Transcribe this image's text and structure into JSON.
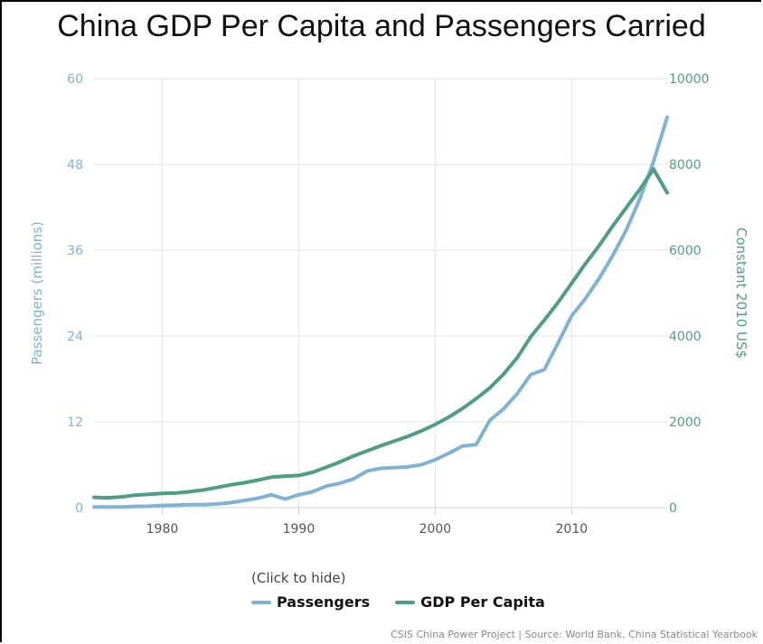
{
  "title": "China GDP Per Capita and Passengers Carried",
  "legend_hint": "(Click to hide)",
  "credits": "CSIS China Power Project | Source: World Bank, China Statistical Yearbook",
  "colors": {
    "passengers": "#7fb3d6",
    "gdp": "#4e9e86",
    "left_axis": "#7fb3d6",
    "right_axis": "#4e9e86",
    "grid": "#e3e3e3"
  },
  "chart_data": {
    "type": "line",
    "title": "China GDP Per Capita and Passengers Carried",
    "xlim": [
      1975,
      2017
    ],
    "x_ticks": [
      1980,
      1990,
      2000,
      2010
    ],
    "y_left": {
      "label": "Passengers (millions)",
      "ticks": [
        "0",
        "12",
        "24",
        "36",
        "48",
        "60"
      ],
      "range": [
        0,
        60
      ]
    },
    "y_right": {
      "label": "Constant 2010 US$",
      "ticks": [
        "0",
        "2000",
        "4000",
        "6000",
        "8000",
        "10000"
      ],
      "range": [
        0,
        10000
      ]
    },
    "grid": true,
    "legend_position": "bottom",
    "series": [
      {
        "name": "Passengers",
        "axis": "left",
        "x": [
          1975,
          1976,
          1977,
          1978,
          1979,
          1980,
          1981,
          1982,
          1983,
          1984,
          1985,
          1986,
          1987,
          1988,
          1989,
          1990,
          1991,
          1992,
          1993,
          1994,
          1995,
          1996,
          1997,
          1998,
          1999,
          2000,
          2001,
          2002,
          2003,
          2004,
          2005,
          2006,
          2007,
          2008,
          2009,
          2010,
          2011,
          2012,
          2013,
          2014,
          2015,
          2016,
          2017
        ],
        "values": [
          0.1,
          0.1,
          0.1,
          0.15,
          0.2,
          0.3,
          0.35,
          0.4,
          0.4,
          0.5,
          0.7,
          1.0,
          1.3,
          1.8,
          1.2,
          1.8,
          2.2,
          3.0,
          3.4,
          4.0,
          5.1,
          5.5,
          5.6,
          5.7,
          6.0,
          6.7,
          7.6,
          8.6,
          8.8,
          12.2,
          13.8,
          15.9,
          18.6,
          19.3,
          23.0,
          26.8,
          29.2,
          32.0,
          35.2,
          38.8,
          43.2,
          48.4,
          54.6
        ]
      },
      {
        "name": "GDP Per Capita",
        "axis": "right",
        "x": [
          1975,
          1976,
          1977,
          1978,
          1979,
          1980,
          1981,
          1982,
          1983,
          1984,
          1985,
          1986,
          1987,
          1988,
          1989,
          1990,
          1991,
          1992,
          1993,
          1994,
          1995,
          1996,
          1997,
          1998,
          1999,
          2000,
          2001,
          2002,
          2003,
          2004,
          2005,
          2006,
          2007,
          2008,
          2009,
          2010,
          2011,
          2012,
          2013,
          2014,
          2015,
          2016,
          2017
        ],
        "values": [
          240,
          230,
          250,
          290,
          310,
          330,
          340,
          370,
          410,
          470,
          530,
          580,
          640,
          710,
          730,
          750,
          820,
          940,
          1060,
          1200,
          1320,
          1440,
          1550,
          1660,
          1790,
          1940,
          2110,
          2310,
          2540,
          2790,
          3110,
          3490,
          3980,
          4370,
          4780,
          5230,
          5680,
          6100,
          6560,
          6990,
          7420,
          7890,
          7340
        ]
      }
    ]
  }
}
